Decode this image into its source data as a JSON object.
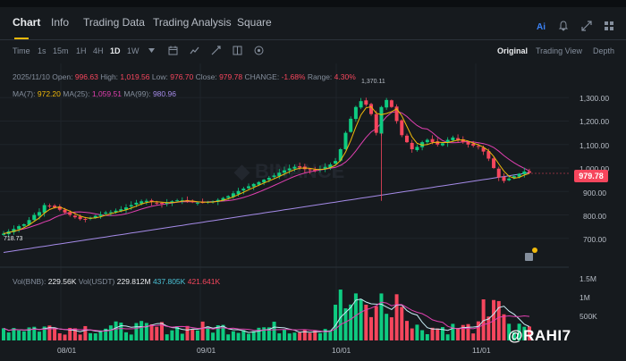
{
  "nav": {
    "tabs": [
      {
        "label": "Chart"
      },
      {
        "label": "Info"
      },
      {
        "label": "Trading Data"
      },
      {
        "label": "Trading Analysis"
      },
      {
        "label": "Square"
      }
    ]
  },
  "toolbar": {
    "timeframes": [
      "Time",
      "1s",
      "15m",
      "1H",
      "4H",
      "1D",
      "1W"
    ],
    "active_timeframe": "1D",
    "views": [
      "Original",
      "Trading View",
      "Depth"
    ],
    "active_view": "Original"
  },
  "ohlc": {
    "date": "2025/11/10",
    "open_label": "Open:",
    "open": "996.63",
    "high_label": "High:",
    "high": "1,019.56",
    "low_label": "Low:",
    "low": "976.70",
    "close_label": "Close:",
    "close": "979.78",
    "change_label": "CHANGE:",
    "change": "-1.68%",
    "range_label": "Range:",
    "range": "4.30%"
  },
  "ma": {
    "ma7_label": "MA(7):",
    "ma7": "972.20",
    "ma25_label": "MA(25):",
    "ma25": "1,059.51",
    "ma99_label": "MA(99):",
    "ma99": "980.96"
  },
  "volume": {
    "vol_bnb_label": "Vol(BNB):",
    "vol_bnb": "229.56K",
    "vol_usdt_label": "Vol(USDT)",
    "vol_usdt": "229.812M",
    "ma1": "437.805K",
    "ma2": "421.641K"
  },
  "price_axis": [
    "1,300.00",
    "1,200.00",
    "1,100.00",
    "1,000.00",
    "900.00",
    "800.00",
    "700.00"
  ],
  "volume_axis": [
    "1.5M",
    "1M",
    "500K"
  ],
  "date_axis": [
    "08/01",
    "09/01",
    "10/01",
    "11/01"
  ],
  "current_price": "979.78",
  "chart_annotations": {
    "high_marker": "1,370.11",
    "low_marker": "718.73"
  },
  "watermark": "@RAHI7",
  "colors": {
    "up": "#0ecb81",
    "down": "#f6465d",
    "accent": "#f0b90b",
    "ma7": "#f0b90b",
    "ma25": "#e040b0",
    "ma99": "#a58be8"
  },
  "chart_data": {
    "type": "candlestick",
    "symbol": "BNB",
    "interval": "1D",
    "ylim": [
      600,
      1400
    ],
    "price_series": [
      720,
      730,
      740,
      752,
      760,
      778,
      800,
      812,
      842,
      838,
      832,
      822,
      810,
      800,
      790,
      782,
      782,
      788,
      796,
      802,
      810,
      812,
      818,
      824,
      832,
      842,
      852,
      858,
      860,
      856,
      852,
      848,
      852,
      858,
      862,
      862,
      858,
      854,
      852,
      854,
      856,
      858,
      864,
      872,
      880,
      892,
      902,
      912,
      922,
      932,
      940,
      950,
      958,
      968,
      980,
      990,
      998,
      1005,
      1002,
      995,
      992,
      990,
      996,
      1005,
      1015,
      1030,
      1080,
      1150,
      1210,
      1260,
      1285,
      1270,
      1230,
      1150,
      1260,
      1290,
      1260,
      1200,
      1140,
      1110,
      1080,
      1090,
      1110,
      1120,
      1110,
      1100,
      1105,
      1120,
      1130,
      1120,
      1110,
      1100,
      1095,
      1090,
      1070,
      1040,
      1000,
      960,
      945,
      955,
      965,
      975,
      985,
      980
    ]
  }
}
